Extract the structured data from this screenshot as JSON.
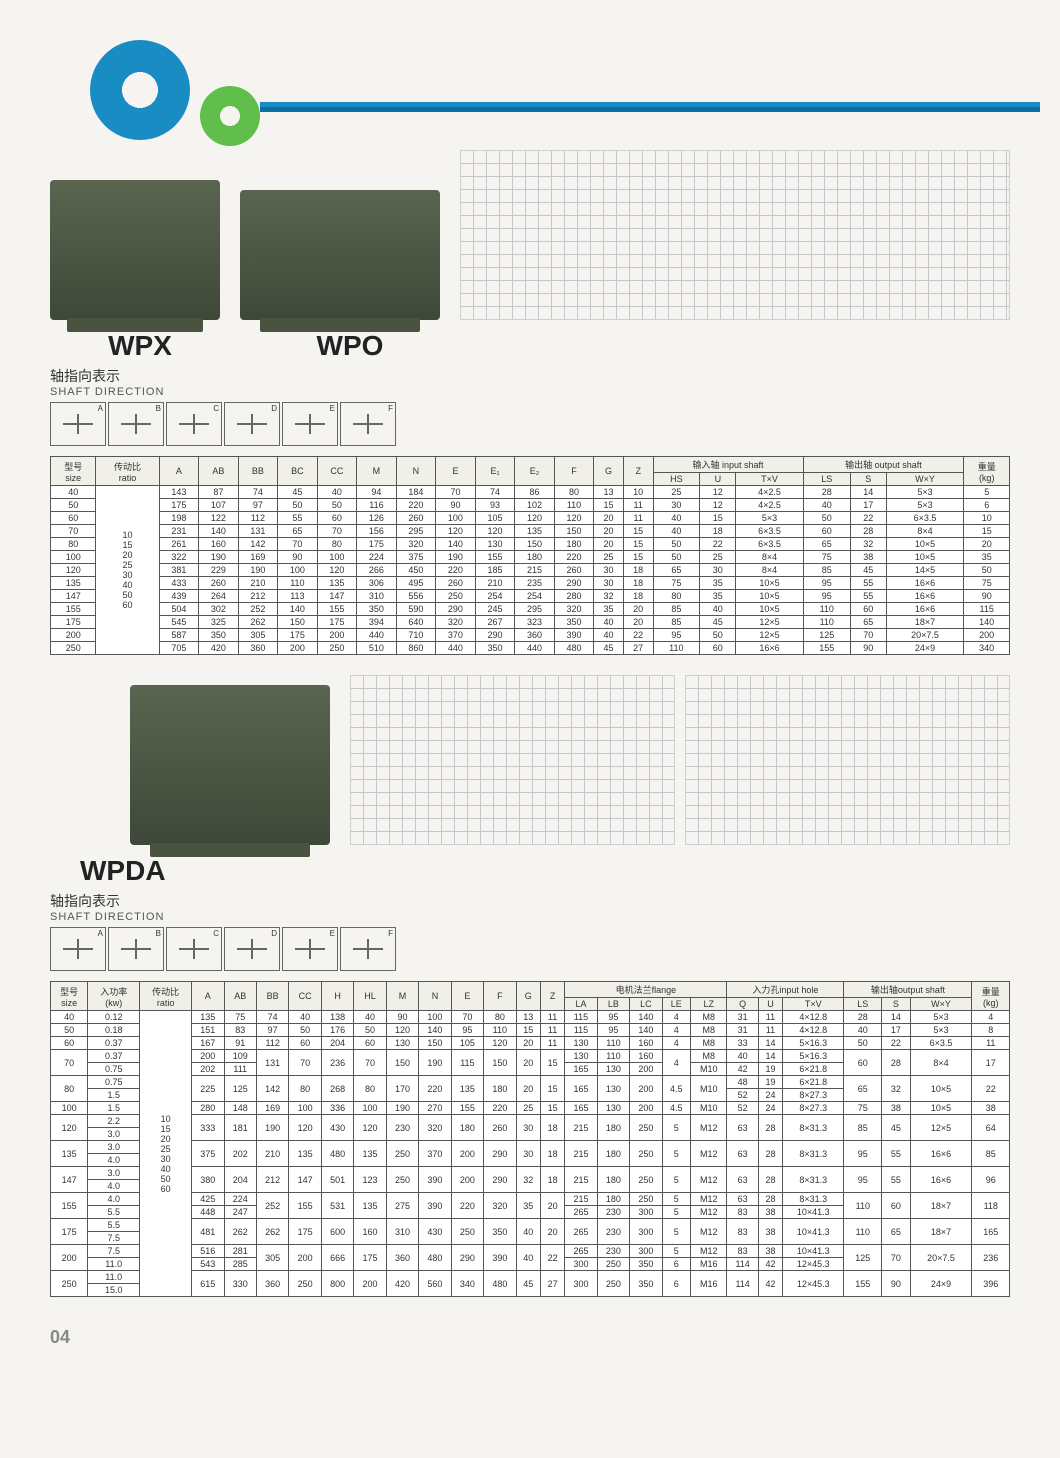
{
  "page_number": "04",
  "colors": {
    "gear_blue": "#1a8cc4",
    "gear_green": "#5fbf4a",
    "line": "#1a8cc4",
    "product": "#4a5542",
    "border": "#555555",
    "bg": "#f5f4f0"
  },
  "sec1": {
    "model_left": "WPX",
    "model_right": "WPO",
    "sub_cn": "轴指向表示",
    "sub_en": "SHAFT DIRECTION",
    "shaft_labels": [
      "A",
      "B",
      "C",
      "D",
      "E",
      "F"
    ],
    "table": {
      "head_row1": [
        "型号\nsize",
        "传动比\nratio",
        "A",
        "AB",
        "BB",
        "BC",
        "CC",
        "M",
        "N",
        "E",
        "E₁",
        "E₂",
        "F",
        "G",
        "Z",
        "输入轴 input shaft",
        "",
        "",
        "输出轴 output shaft",
        "",
        "",
        "重量\n(kg)"
      ],
      "head_row2": [
        "",
        "",
        "",
        "",
        "",
        "",
        "",
        "",
        "",
        "",
        "",
        "",
        "",
        "",
        "",
        "HS",
        "U",
        "T×V",
        "LS",
        "S",
        "W×Y",
        ""
      ],
      "ratio_group": [
        "10",
        "15",
        "20",
        "25",
        "30",
        "40",
        "50",
        "60"
      ],
      "rows": [
        [
          "40",
          "143",
          "87",
          "74",
          "45",
          "40",
          "94",
          "184",
          "70",
          "74",
          "86",
          "80",
          "13",
          "10",
          "25",
          "12",
          "4×2.5",
          "28",
          "14",
          "5×3",
          "5"
        ],
        [
          "50",
          "175",
          "107",
          "97",
          "50",
          "50",
          "116",
          "220",
          "90",
          "93",
          "102",
          "110",
          "15",
          "11",
          "30",
          "12",
          "4×2.5",
          "40",
          "17",
          "5×3",
          "6"
        ],
        [
          "60",
          "198",
          "122",
          "112",
          "55",
          "60",
          "126",
          "260",
          "100",
          "105",
          "120",
          "120",
          "20",
          "11",
          "40",
          "15",
          "5×3",
          "50",
          "22",
          "6×3.5",
          "10"
        ],
        [
          "70",
          "231",
          "140",
          "131",
          "65",
          "70",
          "156",
          "295",
          "120",
          "120",
          "135",
          "150",
          "20",
          "15",
          "40",
          "18",
          "6×3.5",
          "60",
          "28",
          "8×4",
          "15"
        ],
        [
          "80",
          "261",
          "160",
          "142",
          "70",
          "80",
          "175",
          "320",
          "140",
          "130",
          "150",
          "180",
          "20",
          "15",
          "50",
          "22",
          "6×3.5",
          "65",
          "32",
          "10×5",
          "20"
        ],
        [
          "100",
          "322",
          "190",
          "169",
          "90",
          "100",
          "224",
          "375",
          "190",
          "155",
          "180",
          "220",
          "25",
          "15",
          "50",
          "25",
          "8×4",
          "75",
          "38",
          "10×5",
          "35"
        ],
        [
          "120",
          "381",
          "229",
          "190",
          "100",
          "120",
          "266",
          "450",
          "220",
          "185",
          "215",
          "260",
          "30",
          "18",
          "65",
          "30",
          "8×4",
          "85",
          "45",
          "14×5",
          "50"
        ],
        [
          "135",
          "433",
          "260",
          "210",
          "110",
          "135",
          "306",
          "495",
          "260",
          "210",
          "235",
          "290",
          "30",
          "18",
          "75",
          "35",
          "10×5",
          "95",
          "55",
          "16×6",
          "75"
        ],
        [
          "147",
          "439",
          "264",
          "212",
          "113",
          "147",
          "310",
          "556",
          "250",
          "254",
          "254",
          "280",
          "32",
          "18",
          "80",
          "35",
          "10×5",
          "95",
          "55",
          "16×6",
          "90"
        ],
        [
          "155",
          "504",
          "302",
          "252",
          "140",
          "155",
          "350",
          "590",
          "290",
          "245",
          "295",
          "320",
          "35",
          "20",
          "85",
          "40",
          "10×5",
          "110",
          "60",
          "16×6",
          "115"
        ],
        [
          "175",
          "545",
          "325",
          "262",
          "150",
          "175",
          "394",
          "640",
          "320",
          "267",
          "323",
          "350",
          "40",
          "20",
          "85",
          "45",
          "12×5",
          "110",
          "65",
          "18×7",
          "140"
        ],
        [
          "200",
          "587",
          "350",
          "305",
          "175",
          "200",
          "440",
          "710",
          "370",
          "290",
          "360",
          "390",
          "40",
          "22",
          "95",
          "50",
          "12×5",
          "125",
          "70",
          "20×7.5",
          "200"
        ],
        [
          "250",
          "705",
          "420",
          "360",
          "200",
          "250",
          "510",
          "860",
          "440",
          "350",
          "440",
          "480",
          "45",
          "27",
          "110",
          "60",
          "16×6",
          "155",
          "90",
          "24×9",
          "340"
        ]
      ]
    }
  },
  "sec2": {
    "model": "WPDA",
    "sub_cn": "轴指向表示",
    "sub_en": "SHAFT DIRECTION",
    "shaft_labels": [
      "A",
      "B",
      "C",
      "D",
      "E",
      "F"
    ],
    "table": {
      "head_row1": [
        "型号\nsize",
        "入功率\n(kw)",
        "传动比\nratio",
        "A",
        "AB",
        "BB",
        "CC",
        "H",
        "HL",
        "M",
        "N",
        "E",
        "F",
        "G",
        "Z",
        "电机法兰flange",
        "",
        "",
        "",
        "",
        "入力孔input hole",
        "",
        "",
        "输出轴output shaft",
        "",
        "",
        "重量\n(kg)"
      ],
      "head_row2": [
        "",
        "",
        "",
        "",
        "",
        "",
        "",
        "",
        "",
        "",
        "",
        "",
        "",
        "",
        "",
        "LA",
        "LB",
        "LC",
        "LE",
        "LZ",
        "Q",
        "U",
        "T×V",
        "LS",
        "S",
        "W×Y",
        ""
      ],
      "ratio_group": [
        "10",
        "15",
        "20",
        "25",
        "30",
        "40",
        "50",
        "60"
      ],
      "rows": [
        {
          "size": "40",
          "kw": [
            "0.12"
          ],
          "d": [
            "135",
            "75",
            "74",
            "40",
            "138",
            "40",
            "90",
            "100",
            "70",
            "80",
            "13",
            "11",
            "115",
            "95",
            "140",
            "4",
            "M8",
            "31",
            "11",
            "4×12.8",
            "28",
            "14",
            "5×3",
            "4"
          ]
        },
        {
          "size": "50",
          "kw": [
            "0.18"
          ],
          "d": [
            "151",
            "83",
            "97",
            "50",
            "176",
            "50",
            "120",
            "140",
            "95",
            "110",
            "15",
            "11",
            "115",
            "95",
            "140",
            "4",
            "M8",
            "31",
            "11",
            "4×12.8",
            "40",
            "17",
            "5×3",
            "8"
          ]
        },
        {
          "size": "60",
          "kw": [
            "0.37"
          ],
          "d": [
            "167",
            "91",
            "112",
            "60",
            "204",
            "60",
            "130",
            "150",
            "105",
            "120",
            "20",
            "11",
            "130",
            "110",
            "160",
            "4",
            "M8",
            "33",
            "14",
            "5×16.3",
            "50",
            "22",
            "6×3.5",
            "11"
          ]
        },
        {
          "size": "70",
          "kw": [
            "0.37",
            "0.75"
          ],
          "d": [
            "200",
            "109",
            "131",
            "70",
            "236",
            "70",
            "150",
            "190",
            "115",
            "150",
            "20",
            "15",
            "130",
            "110",
            "160",
            "4",
            "M8",
            "40",
            "14",
            "5×16.3",
            "60",
            "28",
            "8×4",
            "17"
          ],
          "d2": [
            "202",
            "111",
            "",
            "",
            "",
            "",
            "",
            "",
            "",
            "",
            "",
            "",
            "165",
            "130",
            "200",
            "",
            "M10",
            "42",
            "19",
            "6×21.8",
            "",
            "",
            "",
            ""
          ]
        },
        {
          "size": "80",
          "kw": [
            "0.75",
            "1.5"
          ],
          "d": [
            "225",
            "125",
            "142",
            "80",
            "268",
            "80",
            "170",
            "220",
            "135",
            "180",
            "20",
            "15",
            "165",
            "130",
            "200",
            "4.5",
            "M10",
            "48",
            "19",
            "6×21.8",
            "65",
            "32",
            "10×5",
            "22"
          ],
          "d2": [
            "",
            "",
            "",
            "",
            "",
            "",
            "",
            "",
            "",
            "",
            "",
            "",
            "",
            "",
            "",
            "",
            "",
            "52",
            "24",
            "8×27.3",
            "",
            "",
            "",
            ""
          ]
        },
        {
          "size": "100",
          "kw": [
            "1.5"
          ],
          "d": [
            "280",
            "148",
            "169",
            "100",
            "336",
            "100",
            "190",
            "270",
            "155",
            "220",
            "25",
            "15",
            "165",
            "130",
            "200",
            "4.5",
            "M10",
            "52",
            "24",
            "8×27.3",
            "75",
            "38",
            "10×5",
            "38"
          ]
        },
        {
          "size": "120",
          "kw": [
            "2.2",
            "3.0"
          ],
          "d": [
            "333",
            "181",
            "190",
            "120",
            "430",
            "120",
            "230",
            "320",
            "180",
            "260",
            "30",
            "18",
            "215",
            "180",
            "250",
            "5",
            "M12",
            "63",
            "28",
            "8×31.3",
            "85",
            "45",
            "12×5",
            "64"
          ]
        },
        {
          "size": "135",
          "kw": [
            "3.0",
            "4.0"
          ],
          "d": [
            "375",
            "202",
            "210",
            "135",
            "480",
            "135",
            "250",
            "370",
            "200",
            "290",
            "30",
            "18",
            "215",
            "180",
            "250",
            "5",
            "M12",
            "63",
            "28",
            "8×31.3",
            "95",
            "55",
            "16×6",
            "85"
          ]
        },
        {
          "size": "147",
          "kw": [
            "3.0",
            "4.0"
          ],
          "d": [
            "380",
            "204",
            "212",
            "147",
            "501",
            "123",
            "250",
            "390",
            "200",
            "290",
            "32",
            "18",
            "215",
            "180",
            "250",
            "5",
            "M12",
            "63",
            "28",
            "8×31.3",
            "95",
            "55",
            "16×6",
            "96"
          ]
        },
        {
          "size": "155",
          "kw": [
            "4.0",
            "5.5"
          ],
          "d": [
            "425",
            "224",
            "252",
            "155",
            "531",
            "135",
            "275",
            "390",
            "220",
            "320",
            "35",
            "20",
            "215",
            "180",
            "250",
            "5",
            "M12",
            "63",
            "28",
            "8×31.3",
            "110",
            "60",
            "18×7",
            "118"
          ],
          "d2": [
            "448",
            "247",
            "",
            "",
            "",
            "",
            "",
            "",
            "",
            "",
            "",
            "",
            "265",
            "230",
            "300",
            "5",
            "M12",
            "83",
            "38",
            "10×41.3",
            "",
            "",
            "",
            ""
          ]
        },
        {
          "size": "175",
          "kw": [
            "5.5",
            "7.5"
          ],
          "d": [
            "481",
            "262",
            "262",
            "175",
            "600",
            "160",
            "310",
            "430",
            "250",
            "350",
            "40",
            "20",
            "265",
            "230",
            "300",
            "5",
            "M12",
            "83",
            "38",
            "10×41.3",
            "110",
            "65",
            "18×7",
            "165"
          ]
        },
        {
          "size": "200",
          "kw": [
            "7.5",
            "11.0"
          ],
          "d": [
            "516",
            "281",
            "305",
            "200",
            "666",
            "175",
            "360",
            "480",
            "290",
            "390",
            "40",
            "22",
            "265",
            "230",
            "300",
            "5",
            "M12",
            "83",
            "38",
            "10×41.3",
            "125",
            "70",
            "20×7.5",
            "236"
          ],
          "d2": [
            "543",
            "285",
            "",
            "",
            "",
            "",
            "",
            "",
            "",
            "",
            "",
            "",
            "300",
            "250",
            "350",
            "6",
            "M16",
            "114",
            "42",
            "12×45.3",
            "",
            "",
            "",
            ""
          ]
        },
        {
          "size": "250",
          "kw": [
            "11.0",
            "15.0"
          ],
          "d": [
            "615",
            "330",
            "360",
            "250",
            "800",
            "200",
            "420",
            "560",
            "340",
            "480",
            "45",
            "27",
            "300",
            "250",
            "350",
            "6",
            "M16",
            "114",
            "42",
            "12×45.3",
            "155",
            "90",
            "24×9",
            "396"
          ]
        }
      ]
    }
  }
}
